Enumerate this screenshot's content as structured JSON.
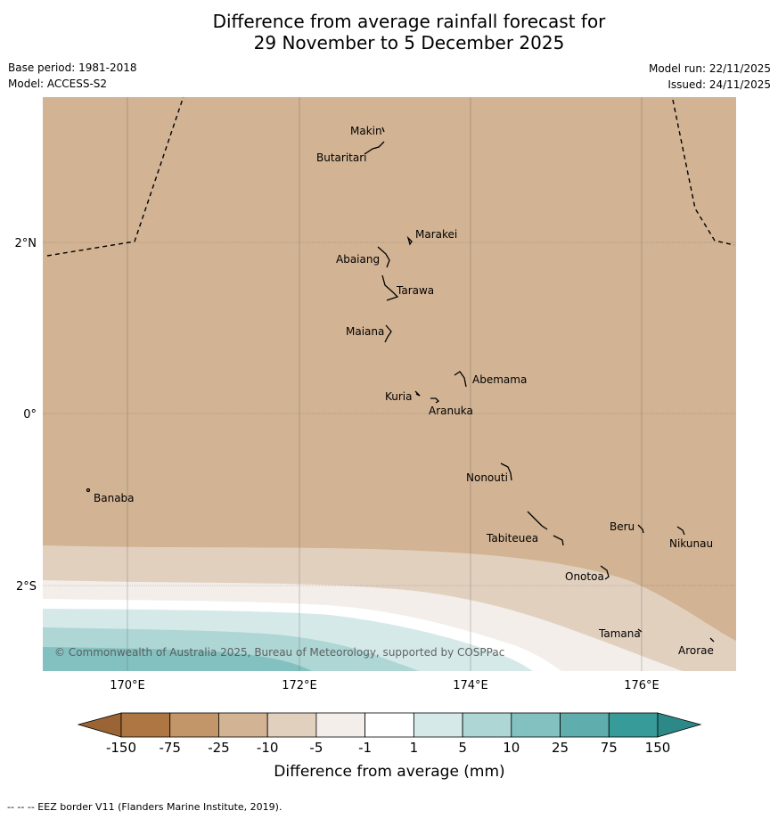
{
  "title": {
    "line1": "Difference from average rainfall forecast for",
    "line2": "29 November to 5 December 2025"
  },
  "meta": {
    "base_period": "Base period: 1981-2018",
    "model": "Model: ACCESS-S2",
    "model_run": "Model run: 22/11/2025",
    "issued": "Issued: 24/11/2025"
  },
  "map": {
    "lon_labels": [
      "170°E",
      "172°E",
      "174°E",
      "176°E"
    ],
    "lat_labels": [
      "2°N",
      "0°",
      "2°S"
    ],
    "places": [
      {
        "name": "Makin"
      },
      {
        "name": "Butaritari"
      },
      {
        "name": "Marakei"
      },
      {
        "name": "Abaiang"
      },
      {
        "name": "Tarawa"
      },
      {
        "name": "Maiana"
      },
      {
        "name": "Abemama"
      },
      {
        "name": "Kuria"
      },
      {
        "name": "Aranuka"
      },
      {
        "name": "Nonouti"
      },
      {
        "name": "Banaba"
      },
      {
        "name": "Beru"
      },
      {
        "name": "Tabiteuea"
      },
      {
        "name": "Nikunau"
      },
      {
        "name": "Onotoa"
      },
      {
        "name": "Tamana"
      },
      {
        "name": "Arorae"
      }
    ],
    "copyright": "© Commonwealth of Australia 2025, Bureau of Meteorology, supported by COSPPac"
  },
  "legend": {
    "title": "Difference from average (mm)",
    "ticks": [
      "-150",
      "-75",
      "-25",
      "-10",
      "-5",
      "-1",
      "1",
      "5",
      "10",
      "25",
      "75",
      "150"
    ],
    "colors": [
      "#ae7642",
      "#c39669",
      "#d2b393",
      "#e2d0bf",
      "#f3eee9",
      "#ffffff",
      "#d5e9e9",
      "#add6d5",
      "#83c1c0",
      "#5fadac",
      "#379b99"
    ],
    "under_color": "#9a6434",
    "over_color": "#2c8987"
  },
  "footer": "--  --  -- EEZ border V11 (Flanders Marine Institute, 2019)."
}
